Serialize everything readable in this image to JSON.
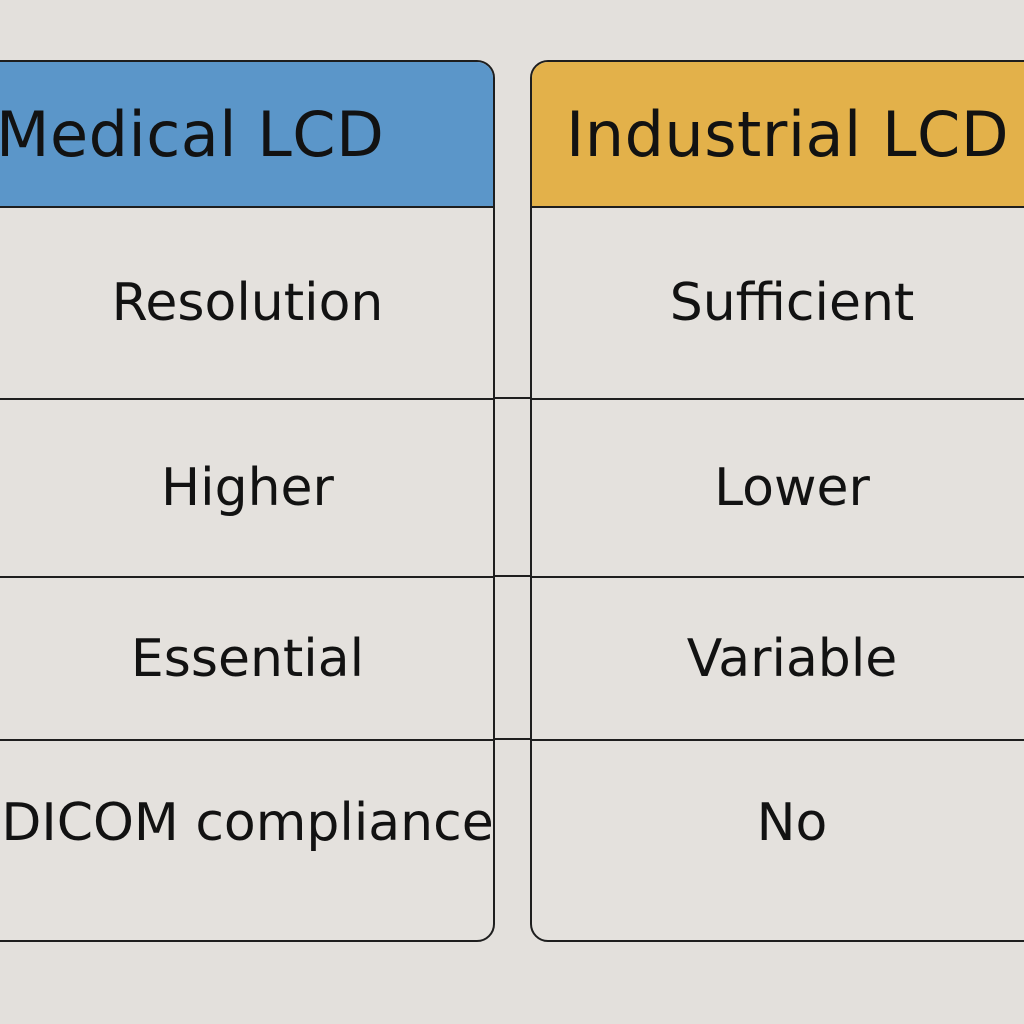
{
  "columns": [
    {
      "header": "Medical LCD",
      "header_color": "#5b96c9",
      "rows": [
        "Resolution",
        "Higher",
        "Essential",
        "DICOM compliance"
      ]
    },
    {
      "header": "Industrial LCD",
      "header_color": "#e3b14a",
      "rows": [
        "Sufficient",
        "Lower",
        "Variable",
        "No"
      ]
    }
  ]
}
